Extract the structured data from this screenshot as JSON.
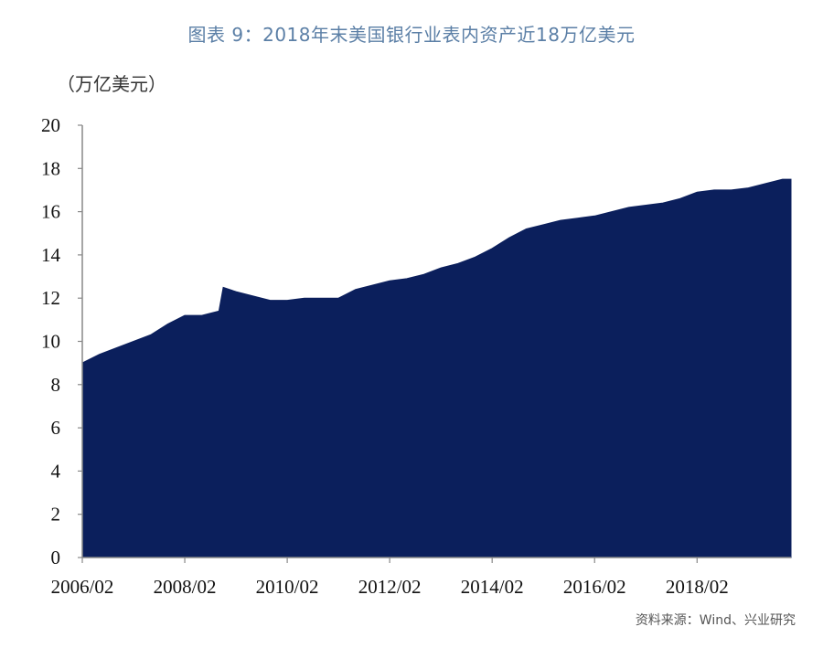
{
  "title": "图表 9：2018年末美国银行业表内资产近18万亿美元",
  "unit_label": "（万亿美元）",
  "source": "资料来源：Wind、兴业研究",
  "colors": {
    "area": "#0b1f5c",
    "title": "#5b7fa6"
  },
  "chart_data": {
    "type": "area",
    "title": "图表 9：2018年末美国银行业表内资产近18万亿美元",
    "ylabel": "（万亿美元）",
    "xlabel": "",
    "ylim": [
      0,
      20
    ],
    "yticks": [
      "0",
      "2",
      "4",
      "6",
      "8",
      "10",
      "12",
      "14",
      "16",
      "18",
      "20"
    ],
    "xtick_labels": [
      "2006/02",
      "2008/02",
      "2010/02",
      "2012/02",
      "2014/02",
      "2016/02",
      "2018/02"
    ],
    "x_range": [
      "2006/02",
      "2019/12"
    ],
    "grid": false,
    "legend": "none",
    "x": [
      "2006/02",
      "2006/06",
      "2006/10",
      "2007/02",
      "2007/06",
      "2007/10",
      "2008/02",
      "2008/06",
      "2008/10",
      "2008/11",
      "2009/02",
      "2009/06",
      "2009/10",
      "2010/02",
      "2010/06",
      "2010/10",
      "2011/02",
      "2011/06",
      "2011/10",
      "2012/02",
      "2012/06",
      "2012/10",
      "2013/02",
      "2013/06",
      "2013/10",
      "2014/02",
      "2014/06",
      "2014/10",
      "2015/02",
      "2015/06",
      "2015/10",
      "2016/02",
      "2016/06",
      "2016/10",
      "2017/02",
      "2017/06",
      "2017/10",
      "2018/02",
      "2018/06",
      "2018/10",
      "2019/02",
      "2019/06",
      "2019/10",
      "2019/12"
    ],
    "values": [
      9.0,
      9.4,
      9.7,
      10.0,
      10.3,
      10.8,
      11.2,
      11.2,
      11.4,
      12.5,
      12.3,
      12.1,
      11.9,
      11.9,
      12.0,
      12.0,
      12.0,
      12.4,
      12.6,
      12.8,
      12.9,
      13.1,
      13.4,
      13.6,
      13.9,
      14.3,
      14.8,
      15.2,
      15.4,
      15.6,
      15.7,
      15.8,
      16.0,
      16.2,
      16.3,
      16.4,
      16.6,
      16.9,
      17.0,
      17.0,
      17.1,
      17.3,
      17.5,
      17.5
    ]
  }
}
